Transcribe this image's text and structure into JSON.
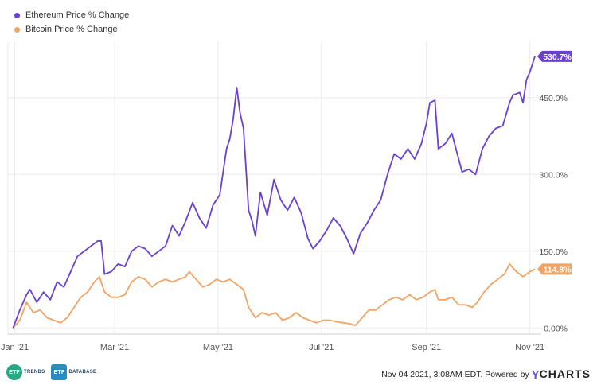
{
  "chart_data": {
    "type": "line",
    "x_range": [
      "2020-12-28",
      "2021-11-04"
    ],
    "ylim": [
      -12,
      560
    ],
    "y_ticks": [
      0,
      150,
      300,
      450
    ],
    "y_tick_labels": [
      "0.00%",
      "150.0%",
      "300.0%",
      "450.0%"
    ],
    "x_ticks": [
      "2021-01-01",
      "2021-03-01",
      "2021-05-01",
      "2021-07-01",
      "2021-09-01",
      "2021-11-01"
    ],
    "x_tick_labels": [
      "Jan '21",
      "Mar '21",
      "May '21",
      "Jul '21",
      "Sep '21",
      "Nov '21"
    ],
    "grid": true,
    "legend_position": "top-left",
    "series": [
      {
        "name": "Ethereum Price % Change",
        "color": "#6a3fd4",
        "end_label": "530.7%",
        "points": [
          [
            "2020-12-31",
            0
          ],
          [
            "2021-01-04",
            35
          ],
          [
            "2021-01-08",
            65
          ],
          [
            "2021-01-10",
            75
          ],
          [
            "2021-01-14",
            50
          ],
          [
            "2021-01-18",
            70
          ],
          [
            "2021-01-22",
            55
          ],
          [
            "2021-01-26",
            90
          ],
          [
            "2021-01-30",
            80
          ],
          [
            "2021-02-03",
            110
          ],
          [
            "2021-02-07",
            140
          ],
          [
            "2021-02-11",
            150
          ],
          [
            "2021-02-15",
            160
          ],
          [
            "2021-02-19",
            170
          ],
          [
            "2021-02-21",
            170
          ],
          [
            "2021-02-23",
            105
          ],
          [
            "2021-02-27",
            110
          ],
          [
            "2021-03-03",
            125
          ],
          [
            "2021-03-07",
            120
          ],
          [
            "2021-03-11",
            150
          ],
          [
            "2021-03-15",
            160
          ],
          [
            "2021-03-19",
            155
          ],
          [
            "2021-03-23",
            140
          ],
          [
            "2021-03-27",
            150
          ],
          [
            "2021-03-31",
            160
          ],
          [
            "2021-04-04",
            200
          ],
          [
            "2021-04-08",
            180
          ],
          [
            "2021-04-12",
            210
          ],
          [
            "2021-04-16",
            245
          ],
          [
            "2021-04-20",
            215
          ],
          [
            "2021-04-24",
            195
          ],
          [
            "2021-04-28",
            240
          ],
          [
            "2021-05-02",
            260
          ],
          [
            "2021-05-06",
            350
          ],
          [
            "2021-05-08",
            370
          ],
          [
            "2021-05-10",
            410
          ],
          [
            "2021-05-12",
            470
          ],
          [
            "2021-05-14",
            420
          ],
          [
            "2021-05-16",
            390
          ],
          [
            "2021-05-19",
            230
          ],
          [
            "2021-05-21",
            210
          ],
          [
            "2021-05-23",
            180
          ],
          [
            "2021-05-26",
            265
          ],
          [
            "2021-05-30",
            220
          ],
          [
            "2021-06-03",
            290
          ],
          [
            "2021-06-07",
            250
          ],
          [
            "2021-06-11",
            230
          ],
          [
            "2021-06-15",
            255
          ],
          [
            "2021-06-19",
            225
          ],
          [
            "2021-06-23",
            175
          ],
          [
            "2021-06-26",
            155
          ],
          [
            "2021-06-30",
            170
          ],
          [
            "2021-07-04",
            190
          ],
          [
            "2021-07-08",
            215
          ],
          [
            "2021-07-12",
            200
          ],
          [
            "2021-07-16",
            175
          ],
          [
            "2021-07-20",
            145
          ],
          [
            "2021-07-24",
            185
          ],
          [
            "2021-07-28",
            205
          ],
          [
            "2021-08-01",
            230
          ],
          [
            "2021-08-05",
            250
          ],
          [
            "2021-08-09",
            300
          ],
          [
            "2021-08-13",
            340
          ],
          [
            "2021-08-17",
            330
          ],
          [
            "2021-08-21",
            350
          ],
          [
            "2021-08-25",
            330
          ],
          [
            "2021-08-29",
            360
          ],
          [
            "2021-09-01",
            400
          ],
          [
            "2021-09-03",
            440
          ],
          [
            "2021-09-06",
            445
          ],
          [
            "2021-09-08",
            350
          ],
          [
            "2021-09-12",
            360
          ],
          [
            "2021-09-16",
            380
          ],
          [
            "2021-09-20",
            330
          ],
          [
            "2021-09-22",
            305
          ],
          [
            "2021-09-26",
            310
          ],
          [
            "2021-09-30",
            300
          ],
          [
            "2021-10-04",
            350
          ],
          [
            "2021-10-08",
            375
          ],
          [
            "2021-10-12",
            390
          ],
          [
            "2021-10-16",
            395
          ],
          [
            "2021-10-20",
            440
          ],
          [
            "2021-10-22",
            455
          ],
          [
            "2021-10-26",
            460
          ],
          [
            "2021-10-28",
            440
          ],
          [
            "2021-10-30",
            485
          ],
          [
            "2021-11-01",
            500
          ],
          [
            "2021-11-04",
            530.7
          ]
        ]
      },
      {
        "name": "Bitcoin Price % Change",
        "color": "#f2a464",
        "end_label": "114.8%",
        "points": [
          [
            "2020-12-31",
            0
          ],
          [
            "2021-01-04",
            15
          ],
          [
            "2021-01-08",
            50
          ],
          [
            "2021-01-12",
            30
          ],
          [
            "2021-01-16",
            35
          ],
          [
            "2021-01-20",
            20
          ],
          [
            "2021-01-24",
            15
          ],
          [
            "2021-01-28",
            10
          ],
          [
            "2021-02-01",
            20
          ],
          [
            "2021-02-05",
            40
          ],
          [
            "2021-02-09",
            60
          ],
          [
            "2021-02-13",
            70
          ],
          [
            "2021-02-17",
            90
          ],
          [
            "2021-02-20",
            100
          ],
          [
            "2021-02-23",
            70
          ],
          [
            "2021-02-27",
            60
          ],
          [
            "2021-03-03",
            60
          ],
          [
            "2021-03-07",
            65
          ],
          [
            "2021-03-11",
            90
          ],
          [
            "2021-03-15",
            100
          ],
          [
            "2021-03-19",
            95
          ],
          [
            "2021-03-23",
            80
          ],
          [
            "2021-03-27",
            90
          ],
          [
            "2021-03-31",
            95
          ],
          [
            "2021-04-04",
            90
          ],
          [
            "2021-04-08",
            95
          ],
          [
            "2021-04-12",
            100
          ],
          [
            "2021-04-14",
            110
          ],
          [
            "2021-04-18",
            95
          ],
          [
            "2021-04-22",
            80
          ],
          [
            "2021-04-26",
            85
          ],
          [
            "2021-04-30",
            95
          ],
          [
            "2021-05-04",
            90
          ],
          [
            "2021-05-08",
            95
          ],
          [
            "2021-05-12",
            85
          ],
          [
            "2021-05-16",
            75
          ],
          [
            "2021-05-19",
            40
          ],
          [
            "2021-05-23",
            20
          ],
          [
            "2021-05-27",
            30
          ],
          [
            "2021-05-31",
            25
          ],
          [
            "2021-06-04",
            30
          ],
          [
            "2021-06-08",
            15
          ],
          [
            "2021-06-12",
            20
          ],
          [
            "2021-06-16",
            30
          ],
          [
            "2021-06-20",
            20
          ],
          [
            "2021-06-24",
            15
          ],
          [
            "2021-06-28",
            10
          ],
          [
            "2021-07-02",
            15
          ],
          [
            "2021-07-06",
            15
          ],
          [
            "2021-07-10",
            12
          ],
          [
            "2021-07-14",
            10
          ],
          [
            "2021-07-18",
            8
          ],
          [
            "2021-07-21",
            5
          ],
          [
            "2021-07-25",
            20
          ],
          [
            "2021-07-29",
            35
          ],
          [
            "2021-08-02",
            35
          ],
          [
            "2021-08-06",
            45
          ],
          [
            "2021-08-10",
            55
          ],
          [
            "2021-08-14",
            60
          ],
          [
            "2021-08-18",
            55
          ],
          [
            "2021-08-22",
            65
          ],
          [
            "2021-08-26",
            55
          ],
          [
            "2021-08-30",
            60
          ],
          [
            "2021-09-03",
            70
          ],
          [
            "2021-09-06",
            75
          ],
          [
            "2021-09-08",
            55
          ],
          [
            "2021-09-12",
            55
          ],
          [
            "2021-09-16",
            60
          ],
          [
            "2021-09-20",
            45
          ],
          [
            "2021-09-24",
            45
          ],
          [
            "2021-09-28",
            40
          ],
          [
            "2021-10-01",
            50
          ],
          [
            "2021-10-05",
            70
          ],
          [
            "2021-10-09",
            85
          ],
          [
            "2021-10-13",
            95
          ],
          [
            "2021-10-17",
            105
          ],
          [
            "2021-10-20",
            125
          ],
          [
            "2021-10-24",
            110
          ],
          [
            "2021-10-28",
            100
          ],
          [
            "2021-11-01",
            110
          ],
          [
            "2021-11-04",
            114.8
          ]
        ]
      }
    ]
  },
  "legend": {
    "ethereum_label": "Ethereum Price % Change",
    "bitcoin_label": "Bitcoin Price % Change"
  },
  "footer": {
    "logo_trends_mark": "ETF",
    "logo_trends_word": "TRENDS",
    "logo_database_mark": "ETF",
    "logo_database_word": "DATABASE",
    "timestamp": "Nov 04 2021, 3:08AM EDT.",
    "powered_by": "Powered by",
    "brand_y": "Y",
    "brand_charts": "CHARTS"
  },
  "colors": {
    "ethereum": "#6a3fd4",
    "bitcoin": "#f2a464",
    "grid": "#ebebeb",
    "axis_text": "#555555",
    "trends_logo": "#2aa784",
    "database_logo": "#2a8bbf"
  }
}
